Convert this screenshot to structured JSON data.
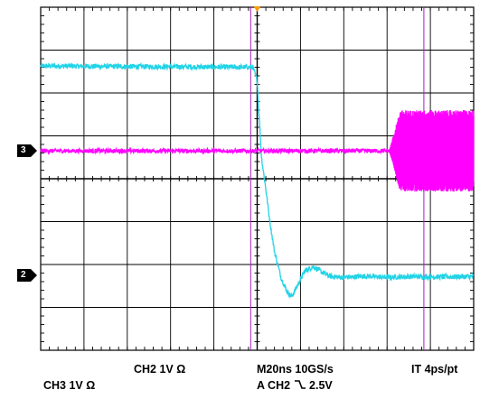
{
  "chart_data": {
    "type": "line",
    "instrument": "oscilloscope",
    "grid": true,
    "divisions": {
      "x": 10,
      "y": 8
    },
    "xlim": [
      -5,
      5
    ],
    "ylim": [
      -4,
      4
    ],
    "series": [
      {
        "channel": "CH2",
        "color": "#22d3e6",
        "x": [
          -5.0,
          -0.1,
          0.0,
          0.05,
          0.1,
          0.2,
          0.3,
          0.4,
          0.55,
          0.7,
          0.8,
          0.9,
          1.1,
          1.3,
          1.5,
          1.7,
          2.0,
          2.5,
          3.0,
          3.5,
          4.0,
          5.0
        ],
        "y": [
          2.63,
          2.6,
          2.3,
          1.4,
          0.5,
          -0.25,
          -1.05,
          -1.7,
          -2.3,
          -2.65,
          -2.75,
          -2.55,
          -2.15,
          -2.05,
          -2.18,
          -2.28,
          -2.3,
          -2.27,
          -2.3,
          -2.28,
          -2.29,
          -2.28
        ],
        "noise_div": 0.06
      },
      {
        "channel": "CH3",
        "color": "#ff00ff",
        "x": [
          -5.0,
          3.0,
          5.0
        ],
        "y": [
          0.65,
          0.65,
          0.65
        ],
        "noise_div": 0.05,
        "burst": {
          "x_start": 3.05,
          "x_end": 5.0,
          "amplitude_div": 0.95
        }
      }
    ],
    "cursors": {
      "color": "#a020c0",
      "x": [
        -0.15,
        3.85
      ]
    },
    "trigger_marker": {
      "color": "#ff9a00"
    },
    "channel_markers": [
      {
        "label": "3",
        "y": 0.65
      },
      {
        "label": "2",
        "y": -2.25
      }
    ]
  },
  "readouts": {
    "ch3": "CH3  1V Ω",
    "ch2": "CH2  1V Ω",
    "timebase": "M20ns 10GS/s",
    "interp": "IT  4ps/pt",
    "trigger_prefix": "A  CH2",
    "trigger_symbol": "⌐",
    "trigger_level": "2.5V"
  }
}
